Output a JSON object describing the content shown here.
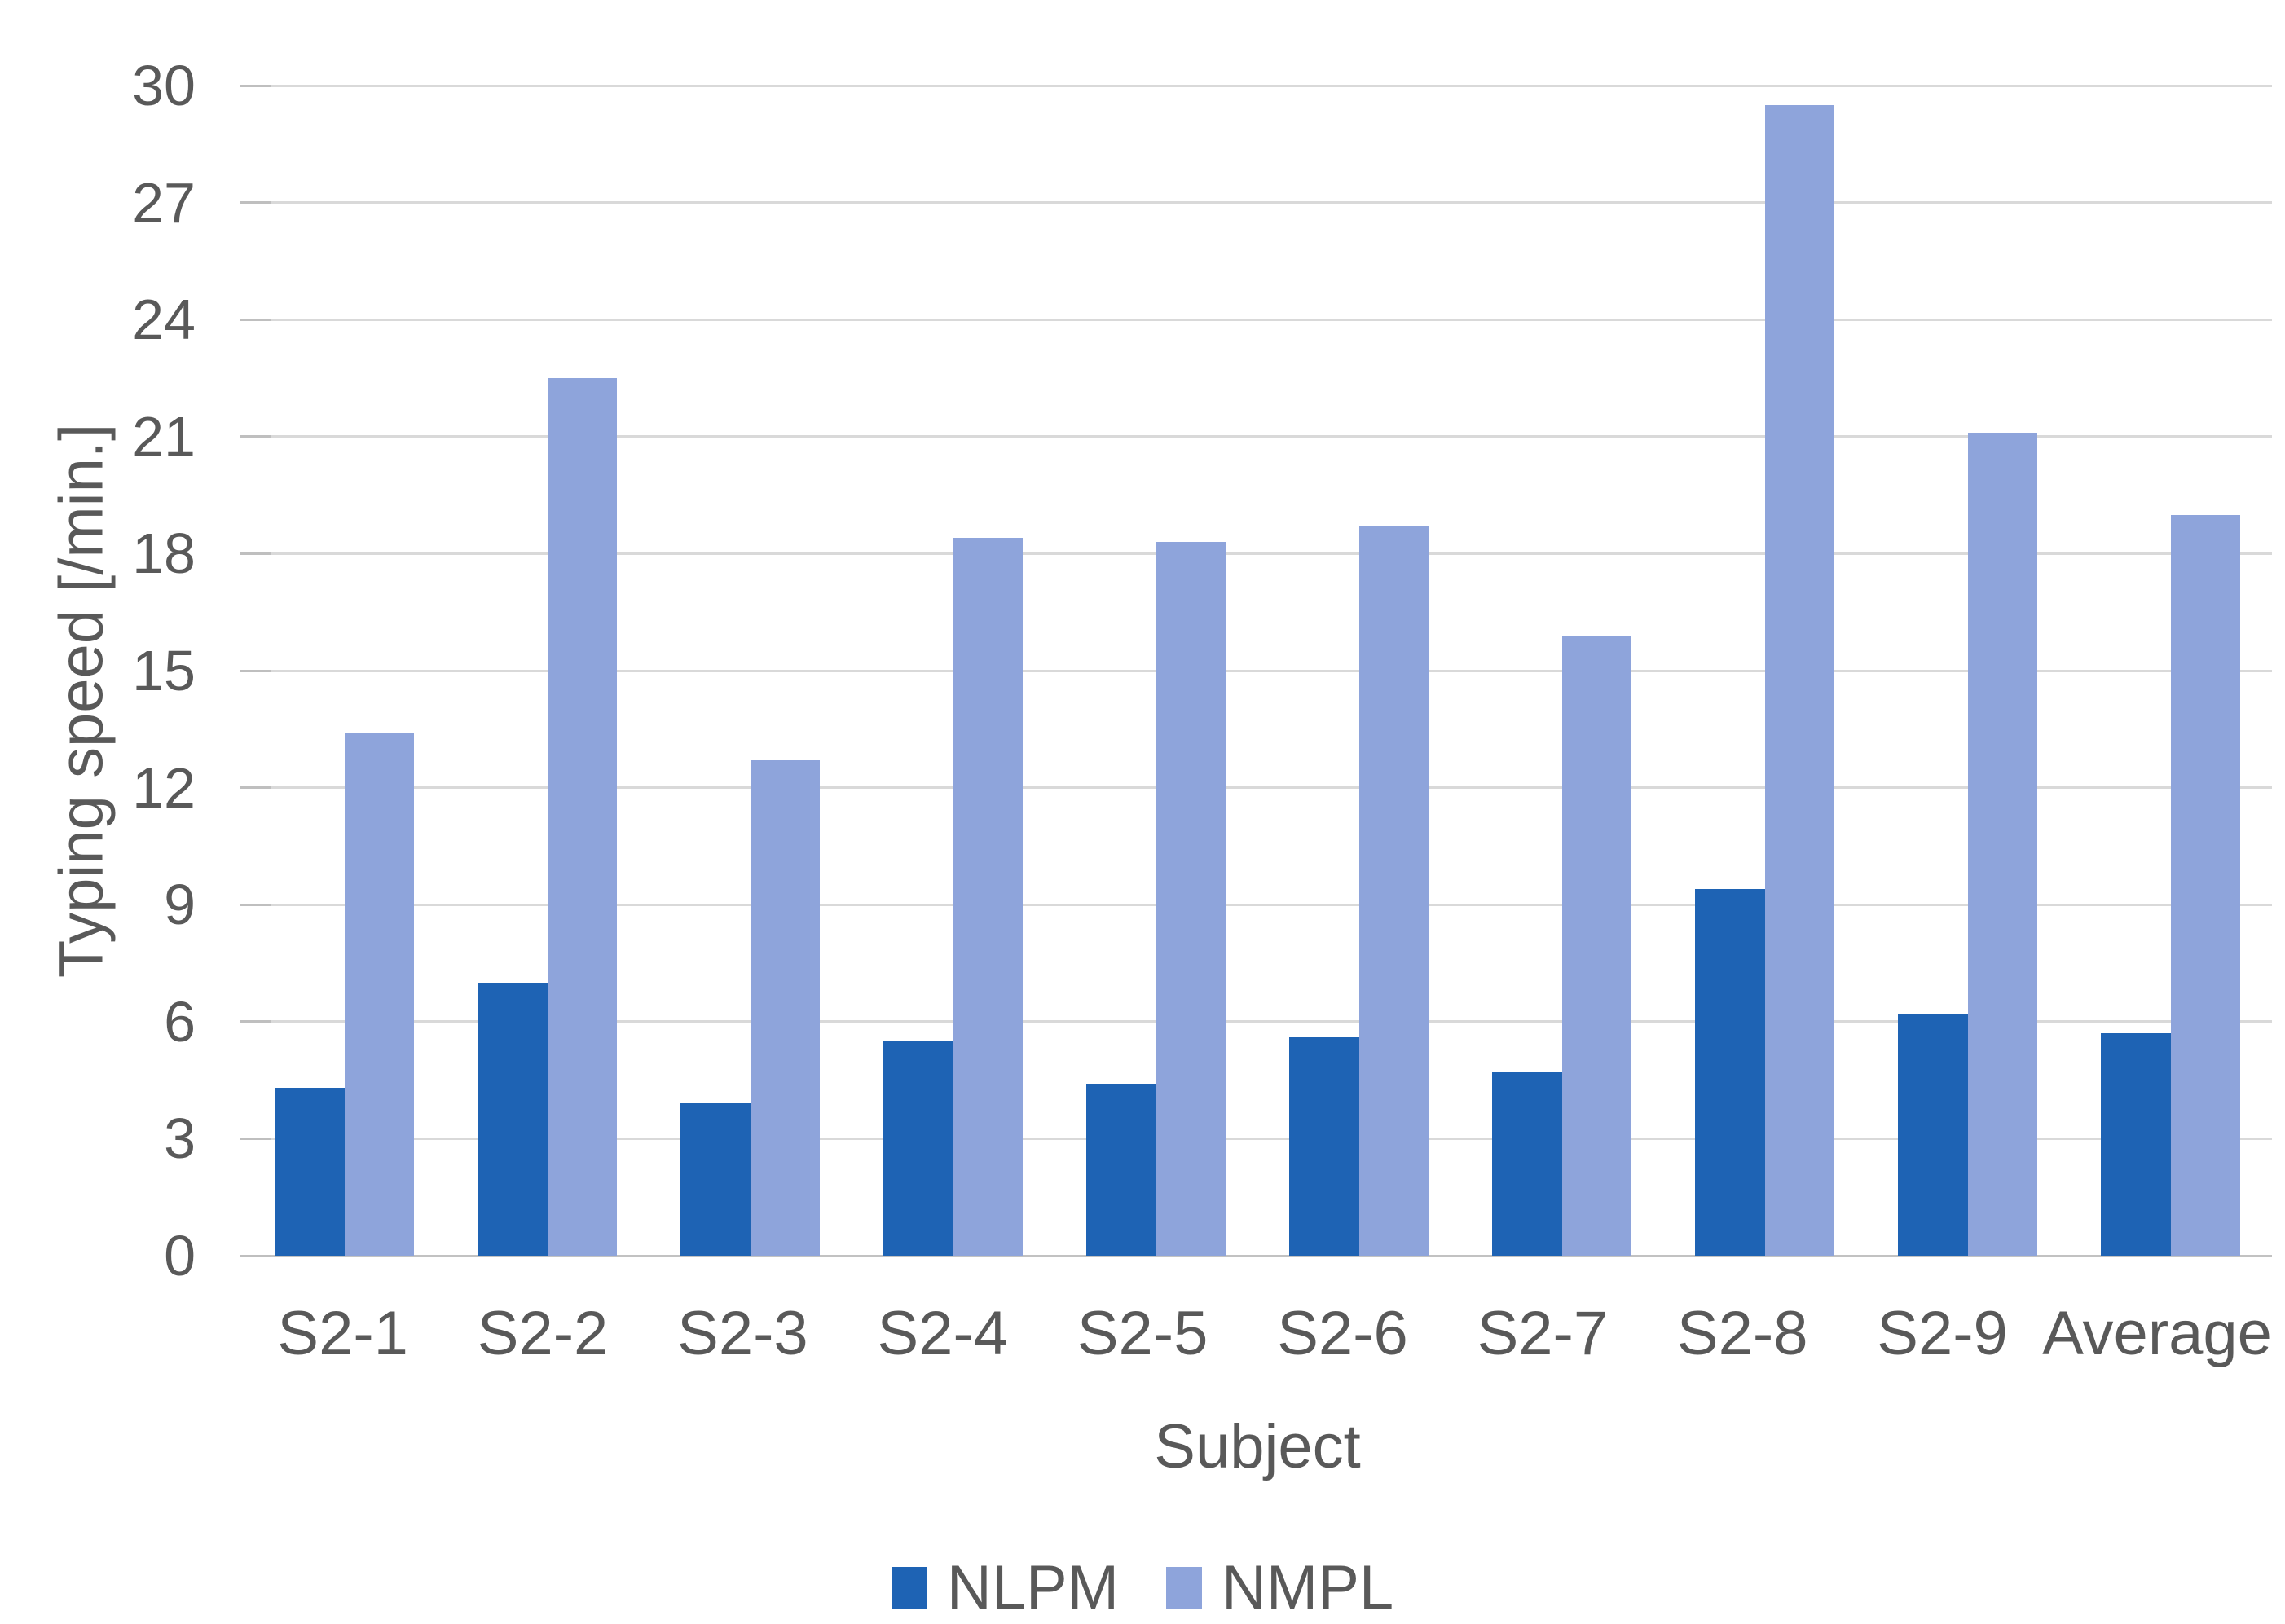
{
  "figure": {
    "background": "#ffffff",
    "text_color": "#595959",
    "gridline_color": "#d9d9d9",
    "axis_line_color": "#c2c2c2",
    "tick_mark_color": "#bfbfbf"
  },
  "chart_data": {
    "type": "bar",
    "title": "",
    "categories": [
      "S2-1",
      "S2-2",
      "S2-3",
      "S2-4",
      "S2-5",
      "S2-6",
      "S2-7",
      "S2-8",
      "S2-9",
      "Average"
    ],
    "series": [
      {
        "name": "NLPM",
        "color": "#1e63b4",
        "values": [
          4.3,
          7.0,
          3.9,
          5.5,
          4.4,
          5.6,
          4.7,
          9.4,
          6.2,
          5.7
        ]
      },
      {
        "name": "NMPL",
        "color": "#8ea4db",
        "values": [
          13.4,
          22.5,
          12.7,
          18.4,
          18.3,
          18.7,
          15.9,
          29.5,
          21.1,
          19.0
        ]
      }
    ],
    "xlabel": "Subject",
    "ylabel": "Typing speed [/min.]",
    "ylim": [
      0,
      30
    ],
    "yticks": [
      0,
      3,
      6,
      9,
      12,
      15,
      18,
      21,
      24,
      27,
      30
    ],
    "grid": true,
    "legend_position": "bottom"
  }
}
